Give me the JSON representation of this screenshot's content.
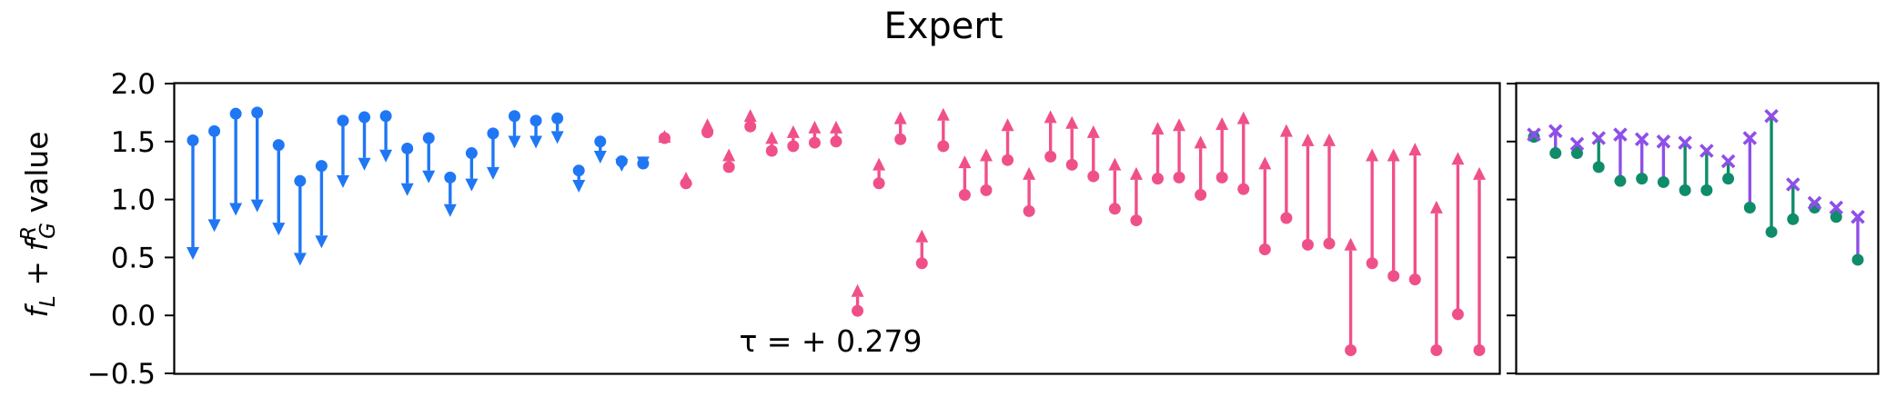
{
  "chart_data": {
    "type": "scatter",
    "title": "Expert",
    "ylabel_parts": {
      "f1": "f",
      "sub1": "L",
      "plus": "+",
      "f2": "f",
      "sup2": "R",
      "sub2": "G",
      "rest": "value"
    },
    "ylim": [
      -0.5,
      2.0
    ],
    "yticks": [
      "2.0",
      "1.5",
      "1.0",
      "0.5",
      "0.0",
      "−0.5"
    ],
    "yticks_values": [
      2.0,
      1.5,
      1.0,
      0.5,
      0.0,
      -0.5
    ],
    "annotation": "τ = + 0.279",
    "colors": {
      "down": "#1F77F4",
      "up": "#F0508A",
      "green": "#0F8C6A",
      "purple": "#8E4FE8"
    },
    "left_panel": {
      "down_arrows": [
        [
          1.51,
          0.48
        ],
        [
          1.59,
          0.72
        ],
        [
          1.74,
          0.86
        ],
        [
          1.75,
          0.89
        ],
        [
          1.47,
          0.69
        ],
        [
          1.16,
          0.43
        ],
        [
          1.29,
          0.58
        ],
        [
          1.68,
          1.1
        ],
        [
          1.71,
          1.25
        ],
        [
          1.72,
          1.32
        ],
        [
          1.44,
          1.03
        ],
        [
          1.53,
          1.14
        ],
        [
          1.19,
          0.85
        ],
        [
          1.4,
          1.07
        ],
        [
          1.57,
          1.17
        ],
        [
          1.72,
          1.44
        ],
        [
          1.68,
          1.44
        ],
        [
          1.7,
          1.48
        ],
        [
          1.25,
          1.06
        ],
        [
          1.5,
          1.31
        ],
        [
          1.33,
          1.24
        ],
        [
          1.31,
          1.26
        ]
      ],
      "up_arrows": [
        [
          1.53,
          1.6
        ],
        [
          1.14,
          1.24
        ],
        [
          1.58,
          1.7
        ],
        [
          1.28,
          1.44
        ],
        [
          1.63,
          1.78
        ],
        [
          1.42,
          1.59
        ],
        [
          1.46,
          1.64
        ],
        [
          1.49,
          1.68
        ],
        [
          1.5,
          1.68
        ],
        [
          0.04,
          0.27
        ],
        [
          1.14,
          1.36
        ],
        [
          1.52,
          1.76
        ],
        [
          0.45,
          0.74
        ],
        [
          1.46,
          1.79
        ],
        [
          1.04,
          1.38
        ],
        [
          1.08,
          1.44
        ],
        [
          1.34,
          1.7
        ],
        [
          0.9,
          1.28
        ],
        [
          1.37,
          1.77
        ],
        [
          1.3,
          1.72
        ],
        [
          1.2,
          1.64
        ],
        [
          0.92,
          1.36
        ],
        [
          0.82,
          1.28
        ],
        [
          1.18,
          1.67
        ],
        [
          1.19,
          1.7
        ],
        [
          1.04,
          1.55
        ],
        [
          1.19,
          1.71
        ],
        [
          1.09,
          1.76
        ],
        [
          0.57,
          1.37
        ],
        [
          0.84,
          1.65
        ],
        [
          0.61,
          1.57
        ],
        [
          0.62,
          1.57
        ],
        [
          -0.3,
          0.67
        ],
        [
          0.45,
          1.44
        ],
        [
          0.34,
          1.44
        ],
        [
          0.31,
          1.49
        ],
        [
          -0.3,
          0.99
        ],
        [
          0.01,
          1.41
        ],
        [
          -0.3,
          1.28
        ]
      ]
    },
    "right_panel": {
      "pairs": [
        {
          "dot": 1.54,
          "cross": 1.56,
          "stem": "green"
        },
        {
          "dot": 1.4,
          "cross": 1.59,
          "stem": "purple"
        },
        {
          "dot": 1.4,
          "cross": 1.48,
          "stem": "green"
        },
        {
          "dot": 1.28,
          "cross": 1.53,
          "stem": "green"
        },
        {
          "dot": 1.16,
          "cross": 1.56,
          "stem": "purple"
        },
        {
          "dot": 1.18,
          "cross": 1.52,
          "stem": "purple"
        },
        {
          "dot": 1.15,
          "cross": 1.5,
          "stem": "purple"
        },
        {
          "dot": 1.08,
          "cross": 1.49,
          "stem": "green"
        },
        {
          "dot": 1.08,
          "cross": 1.42,
          "stem": "green"
        },
        {
          "dot": 1.18,
          "cross": 1.33,
          "stem": "green"
        },
        {
          "dot": 0.93,
          "cross": 1.53,
          "stem": "purple"
        },
        {
          "dot": 0.72,
          "cross": 1.72,
          "stem": "green"
        },
        {
          "dot": 0.83,
          "cross": 1.13,
          "stem": "green"
        },
        {
          "dot": 0.93,
          "cross": 0.97,
          "stem": "purple"
        },
        {
          "dot": 0.85,
          "cross": 0.93,
          "stem": "green"
        },
        {
          "dot": 0.48,
          "cross": 0.85,
          "stem": "purple"
        }
      ]
    }
  }
}
